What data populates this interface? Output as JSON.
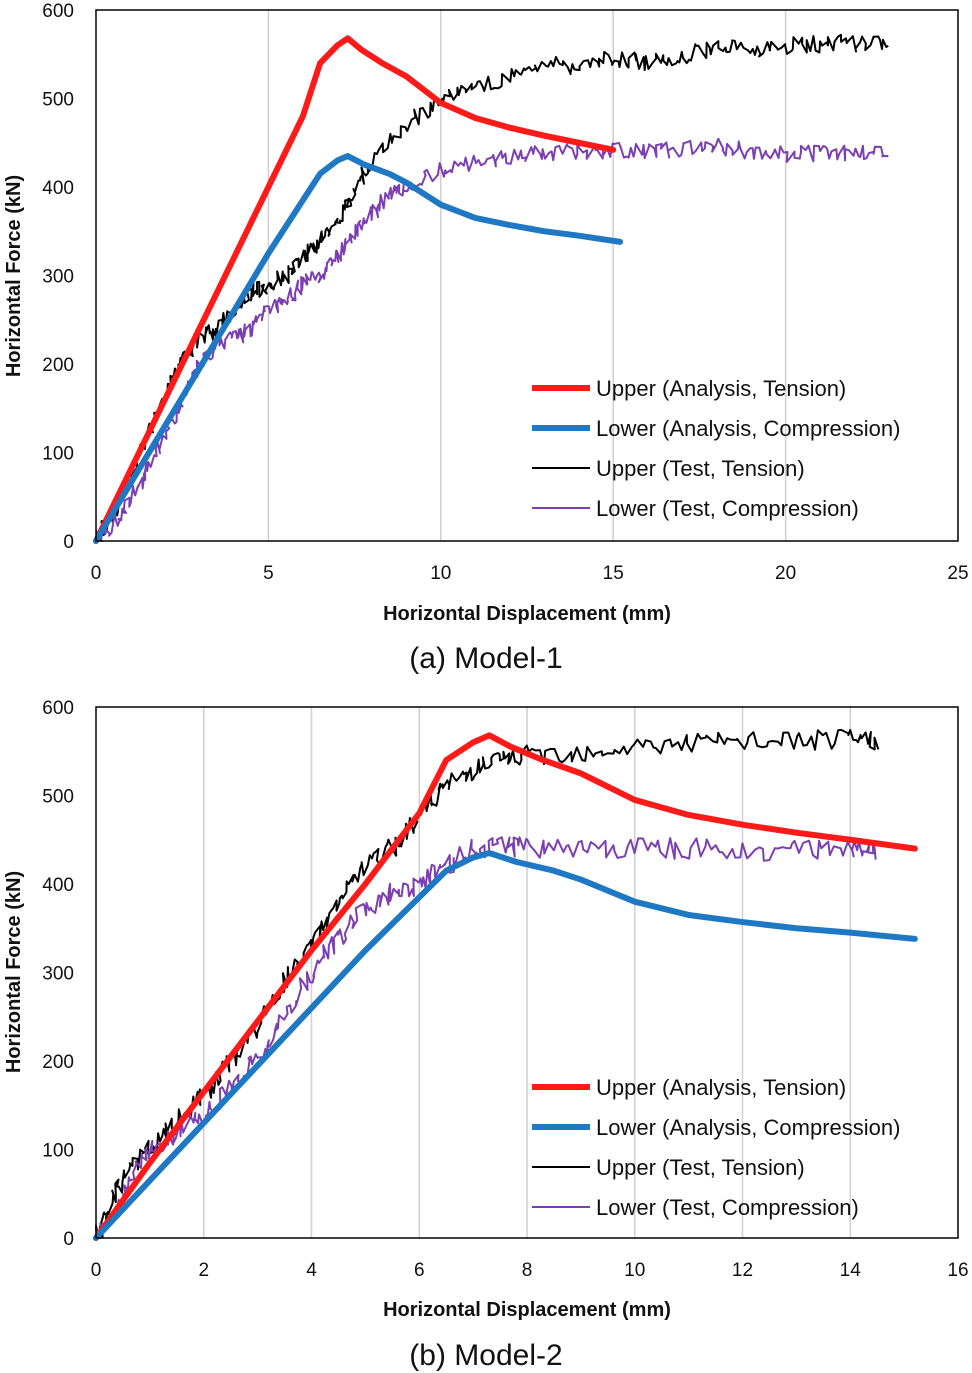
{
  "colors": {
    "upper_analysis": "#ff1a1a",
    "lower_analysis": "#1f78c4",
    "upper_test": "#000000",
    "lower_test": "#7b3fb3",
    "grid": "#d0d0d0"
  },
  "chart_data": [
    {
      "type": "line",
      "caption": "(a) Model-1",
      "xlabel": "Horizontal Displacement (mm)",
      "ylabel": "Horizontal Force (kN)",
      "xlim": [
        0,
        25
      ],
      "ylim": [
        0,
        600
      ],
      "xticks": [
        0,
        5,
        10,
        15,
        20,
        25
      ],
      "yticks": [
        0,
        100,
        200,
        300,
        400,
        500,
        600
      ],
      "grid": "vertical",
      "legend_position": "bottom-right",
      "series": [
        {
          "name": "Upper (Analysis, Tension)",
          "key": "upper_analysis",
          "style": "thick",
          "x": [
            0,
            1,
            2,
            3,
            4,
            5,
            6,
            6.5,
            7,
            7.3,
            7.7,
            8.3,
            9,
            10,
            11,
            12,
            13,
            14,
            15
          ],
          "y": [
            0,
            80,
            160,
            240,
            320,
            400,
            480,
            540,
            560,
            568,
            555,
            540,
            525,
            495,
            478,
            467,
            458,
            450,
            442
          ]
        },
        {
          "name": "Lower (Analysis, Compression)",
          "key": "lower_analysis",
          "style": "thick",
          "x": [
            0,
            1,
            2,
            3,
            4,
            5,
            6,
            6.5,
            7,
            7.3,
            7.8,
            8.5,
            9,
            10,
            11,
            12,
            13,
            14,
            15.2
          ],
          "y": [
            0,
            65,
            130,
            195,
            260,
            325,
            385,
            415,
            430,
            435,
            425,
            415,
            405,
            380,
            365,
            357,
            350,
            345,
            338
          ]
        },
        {
          "name": "Upper (Test, Tension)",
          "key": "upper_test",
          "style": "thin",
          "noise": 10,
          "x": [
            0,
            0.5,
            1,
            1.5,
            2,
            2.5,
            3,
            3.5,
            4,
            4.5,
            5,
            5.5,
            6,
            6.5,
            7,
            7.5,
            8,
            9,
            10,
            11,
            12,
            13,
            14,
            15,
            16,
            17,
            18,
            19,
            20,
            21,
            22,
            23
          ],
          "y": [
            0,
            30,
            70,
            120,
            160,
            200,
            230,
            240,
            260,
            280,
            290,
            300,
            320,
            340,
            360,
            400,
            430,
            470,
            500,
            510,
            525,
            540,
            535,
            545,
            540,
            548,
            560,
            555,
            560,
            562,
            562,
            562
          ]
        },
        {
          "name": "Lower (Test, Compression)",
          "key": "lower_test",
          "style": "thin",
          "noise": 10,
          "x": [
            0,
            0.5,
            1,
            1.5,
            2,
            2.5,
            3,
            3.5,
            4,
            4.5,
            5,
            5.5,
            6,
            6.5,
            7,
            7.5,
            8,
            8.5,
            9,
            10,
            11,
            12,
            13,
            14,
            15,
            16,
            17,
            18,
            19,
            20,
            21,
            22,
            23
          ],
          "y": [
            0,
            20,
            50,
            80,
            120,
            160,
            200,
            220,
            230,
            240,
            260,
            270,
            290,
            300,
            320,
            350,
            370,
            390,
            400,
            420,
            430,
            435,
            440,
            440,
            440,
            440,
            445,
            445,
            440,
            438,
            438,
            437,
            437
          ]
        }
      ]
    },
    {
      "type": "line",
      "caption": "(b) Model-2",
      "xlabel": "Horizontal Displacement (mm)",
      "ylabel": "Horizontal Force (kN)",
      "xlim": [
        0,
        16
      ],
      "ylim": [
        0,
        600
      ],
      "xticks": [
        0,
        2,
        4,
        6,
        8,
        10,
        12,
        14,
        16
      ],
      "yticks": [
        0,
        100,
        200,
        300,
        400,
        500,
        600
      ],
      "grid": "vertical",
      "legend_position": "bottom-right",
      "series": [
        {
          "name": "Upper (Analysis, Tension)",
          "key": "upper_analysis",
          "style": "thick",
          "x": [
            0,
            1,
            2,
            3,
            4,
            5,
            6,
            6.5,
            7,
            7.3,
            7.7,
            8.3,
            9,
            10,
            11,
            12,
            13,
            14,
            15.2
          ],
          "y": [
            0,
            85,
            165,
            245,
            325,
            400,
            480,
            540,
            560,
            568,
            555,
            540,
            525,
            495,
            478,
            467,
            458,
            450,
            440
          ]
        },
        {
          "name": "Lower (Analysis, Compression)",
          "key": "lower_analysis",
          "style": "thick",
          "x": [
            0,
            1,
            2,
            3,
            4,
            5,
            6,
            6.5,
            7,
            7.3,
            7.8,
            8.5,
            9,
            10,
            11,
            12,
            13,
            14,
            15.2
          ],
          "y": [
            0,
            65,
            130,
            195,
            260,
            325,
            385,
            415,
            430,
            435,
            425,
            415,
            405,
            380,
            365,
            357,
            350,
            345,
            338
          ]
        },
        {
          "name": "Upper (Test, Tension)",
          "key": "upper_test",
          "style": "thin",
          "noise": 12,
          "x": [
            0,
            0.3,
            0.6,
            1,
            1.5,
            2,
            2.5,
            3,
            3.5,
            4,
            4.5,
            5,
            5.5,
            6,
            6.5,
            7,
            7.5,
            8,
            9,
            10,
            11,
            12,
            13,
            14,
            14.5
          ],
          "y": [
            0,
            40,
            80,
            100,
            130,
            160,
            200,
            240,
            290,
            330,
            380,
            420,
            440,
            480,
            510,
            530,
            540,
            545,
            550,
            555,
            560,
            560,
            562,
            563,
            563
          ]
        },
        {
          "name": "Lower (Test, Compression)",
          "key": "lower_test",
          "style": "thin",
          "noise": 12,
          "x": [
            0,
            0.3,
            0.6,
            1,
            1.5,
            2,
            2.5,
            3,
            3.5,
            4,
            4.5,
            5,
            5.5,
            6,
            6.5,
            7,
            7.5,
            8,
            9,
            10,
            11,
            12,
            13,
            14,
            14.5
          ],
          "y": [
            0,
            20,
            60,
            100,
            120,
            140,
            170,
            200,
            250,
            300,
            340,
            370,
            390,
            400,
            420,
            440,
            445,
            440,
            440,
            440,
            440,
            438,
            437,
            437,
            437
          ]
        }
      ]
    }
  ]
}
